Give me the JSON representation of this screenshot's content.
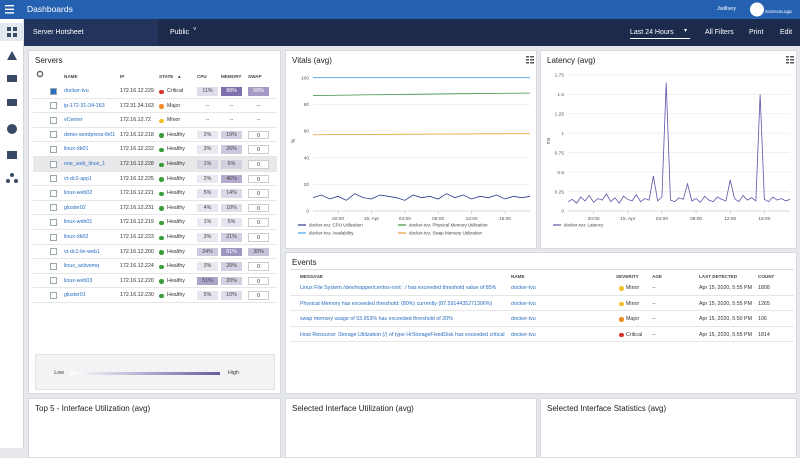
{
  "header": {
    "app": "Dashboards",
    "user": "Jwillsey",
    "logo": "ScienceLogic",
    "dashboard": "Server Hotsheet",
    "visibility": "Public",
    "time_range": "Last 24 Hours",
    "actions": [
      "All Filters",
      "Print",
      "Edit"
    ]
  },
  "servers": {
    "title": "Servers",
    "columns": [
      "NAME",
      "IP",
      "STATE",
      "CPU",
      "MEMORY",
      "SWAP"
    ],
    "rows": [
      [
        "docker-tvu",
        "172.16.12.229",
        "Critical",
        "11%",
        "88%",
        "58%"
      ],
      [
        "ip-172-31-34-163",
        "172.31.34.163",
        "Major",
        "--",
        "--",
        "--"
      ],
      [
        "vCenter",
        "172.16.12.72",
        "Minor",
        "--",
        "--",
        "--"
      ],
      [
        "demo-wordpress-lb01",
        "172.16.12.218",
        "Healthy",
        "2%",
        "19%",
        "0"
      ],
      [
        "linux-db01",
        "172.16.12.222",
        "Healthy",
        "3%",
        "26%",
        "0"
      ],
      [
        "one_web_linux_1",
        "172.16.12.228",
        "Healthy",
        "1%",
        "6%",
        "0"
      ],
      [
        "vt-dc2-app1",
        "172.16.12.225",
        "Healthy",
        "2%",
        "46%",
        "0"
      ],
      [
        "linux-web02",
        "172.16.12.221",
        "Healthy",
        "5%",
        "14%",
        "0"
      ],
      [
        "gluster02",
        "172.16.12.231",
        "Healthy",
        "4%",
        "10%",
        "0"
      ],
      [
        "linux-web01",
        "172.16.12.219",
        "Healthy",
        "1%",
        "5%",
        "0"
      ],
      [
        "linux-db02",
        "172.16.12.223",
        "Healthy",
        "3%",
        "21%",
        "0"
      ],
      [
        "vt-dc1-lin-web1",
        "172.16.12.200",
        "Healthy",
        "24%",
        "61%",
        "30%"
      ],
      [
        "linux_activemq",
        "172.16.12.224",
        "Healthy",
        "3%",
        "20%",
        "0"
      ],
      [
        "linux-web03",
        "172.16.12.220",
        "Healthy",
        "51%",
        "20%",
        "0"
      ],
      [
        "gluster01",
        "172.16.12.230",
        "Healthy",
        "5%",
        "10%",
        "0"
      ]
    ],
    "legend": [
      "Low",
      "High"
    ]
  },
  "chart_data": [
    {
      "type": "line",
      "title": "Vitals (avg)",
      "y_label": "%",
      "xlim": [
        0,
        26
      ],
      "xticks": [
        {
          "value": 3,
          "label": "20:00"
        },
        {
          "value": 7,
          "label": "15. Apr"
        },
        {
          "value": 11,
          "label": "04:00"
        },
        {
          "value": 15,
          "label": "08:00"
        },
        {
          "value": 19,
          "label": "12:00"
        },
        {
          "value": 23,
          "label": "16:00"
        }
      ],
      "ylim": [
        0,
        105
      ],
      "yticks": [
        0,
        20,
        40,
        60,
        80,
        100
      ],
      "grid": true,
      "series": [
        {
          "name": "docker-tvu: CPU Utilization",
          "color": "#2b3a8c",
          "values": [
            10,
            12,
            9,
            11,
            8,
            13,
            10,
            9,
            12,
            11,
            10,
            8,
            12,
            10,
            11,
            9,
            13,
            10,
            12,
            9,
            11,
            10,
            12,
            9,
            11,
            10,
            11
          ]
        },
        {
          "name": "docker-tvu: Availability",
          "color": "#4aa3e8",
          "values": [
            100,
            100,
            100,
            100,
            100,
            100,
            100,
            100,
            100,
            100,
            100,
            100,
            100,
            100,
            100,
            100,
            100,
            100,
            100,
            100,
            100,
            100,
            100,
            100,
            100,
            100,
            100
          ]
        },
        {
          "name": "docker-tvu: Physical Memory Utilization",
          "color": "#3f9142",
          "values": [
            86.5,
            86.6,
            86.7,
            86.8,
            86.9,
            87,
            87.1,
            87.2,
            87.2,
            87.3,
            87.4,
            87.5,
            87.5,
            87.6,
            87.7,
            87.8,
            87.8,
            87.9,
            88,
            88,
            88.1,
            88.2,
            88.2,
            88.3,
            88.3,
            88.4,
            88.4
          ]
        },
        {
          "name": "docker-tvu: Swap Memory Utilization",
          "color": "#e3a235",
          "values": [
            57.2,
            57.2,
            57.3,
            57.3,
            57.3,
            57.4,
            57.4,
            57.4,
            57.5,
            57.5,
            57.5,
            57.6,
            57.6,
            57.6,
            57.7,
            57.7,
            57.7,
            57.8,
            57.8,
            57.8,
            57.9,
            57.9,
            57.9,
            58,
            58,
            58,
            58
          ]
        }
      ]
    },
    {
      "type": "line",
      "title": "Latency (avg)",
      "y_label": "ms",
      "xlim": [
        0,
        52
      ],
      "xticks": [
        {
          "value": 6,
          "label": "20:00"
        },
        {
          "value": 14,
          "label": "15. Apr"
        },
        {
          "value": 22,
          "label": "04:00"
        },
        {
          "value": 30,
          "label": "08:00"
        },
        {
          "value": 38,
          "label": "12:00"
        },
        {
          "value": 46,
          "label": "16:00"
        }
      ],
      "ylim": [
        0,
        1.8
      ],
      "yticks": [
        0,
        0.25,
        0.5,
        0.75,
        1,
        1.25,
        1.5,
        1.75
      ],
      "grid": true,
      "series": [
        {
          "name": "docker-tvu: Latency",
          "color": "#5a55a8",
          "values": [
            0.12,
            0.15,
            0.1,
            0.18,
            0.13,
            0.2,
            0.11,
            0.16,
            0.14,
            0.22,
            0.12,
            0.17,
            0.1,
            0.19,
            0.15,
            0.13,
            0.21,
            0.12,
            0.16,
            0.14,
            0.45,
            0.13,
            0.18,
            1.65,
            0.14,
            0.12,
            0.17,
            0.15,
            0.35,
            0.13,
            0.16,
            0.11,
            0.19,
            0.14,
            0.12,
            0.18,
            0.15,
            0.13,
            0.4,
            0.16,
            0.12,
            0.2,
            0.14,
            0.17,
            0.13,
            1.5,
            0.15,
            0.12,
            0.18,
            0.14,
            0.16,
            0.13,
            0.15
          ]
        }
      ]
    }
  ],
  "events": {
    "title": "Events",
    "columns": [
      "MESSAGE",
      "NAME",
      "SEVERITY",
      "AGE",
      "LAST DETECTED",
      "COUNT"
    ],
    "rows": [
      [
        "Linux File System /dev/mapper/centos-root : / has exceeded threshold value of 85%",
        "docker-tvu",
        "Minor",
        "--",
        "Apr 15, 2020, 5:55 PM",
        "1808"
      ],
      [
        "Physical Memory has exceeded threshold: (80%) currently (87.5914435271306%)",
        "docker-tvu",
        "Minor",
        "--",
        "Apr 15, 2020, 5:55 PM",
        "1265"
      ],
      [
        "swap memory usage of 53.653% has exceeded threshold of 20%",
        "docker-tvu",
        "Major",
        "--",
        "Apr 15, 2020, 5:50 PM",
        "106"
      ],
      [
        "Host Resource: Storage Utilization (/) of type HrStorageFixedDisk has exceeded critical threshold",
        "docker-tvu",
        "Critical",
        "--",
        "Apr 15, 2020, 5:55 PM",
        "1814"
      ]
    ]
  },
  "panels": [
    "Top 5 - Interface Utilization (avg)",
    "Selected Interface Utilization (avg)",
    "Selected Interface Statistics (avg)"
  ]
}
